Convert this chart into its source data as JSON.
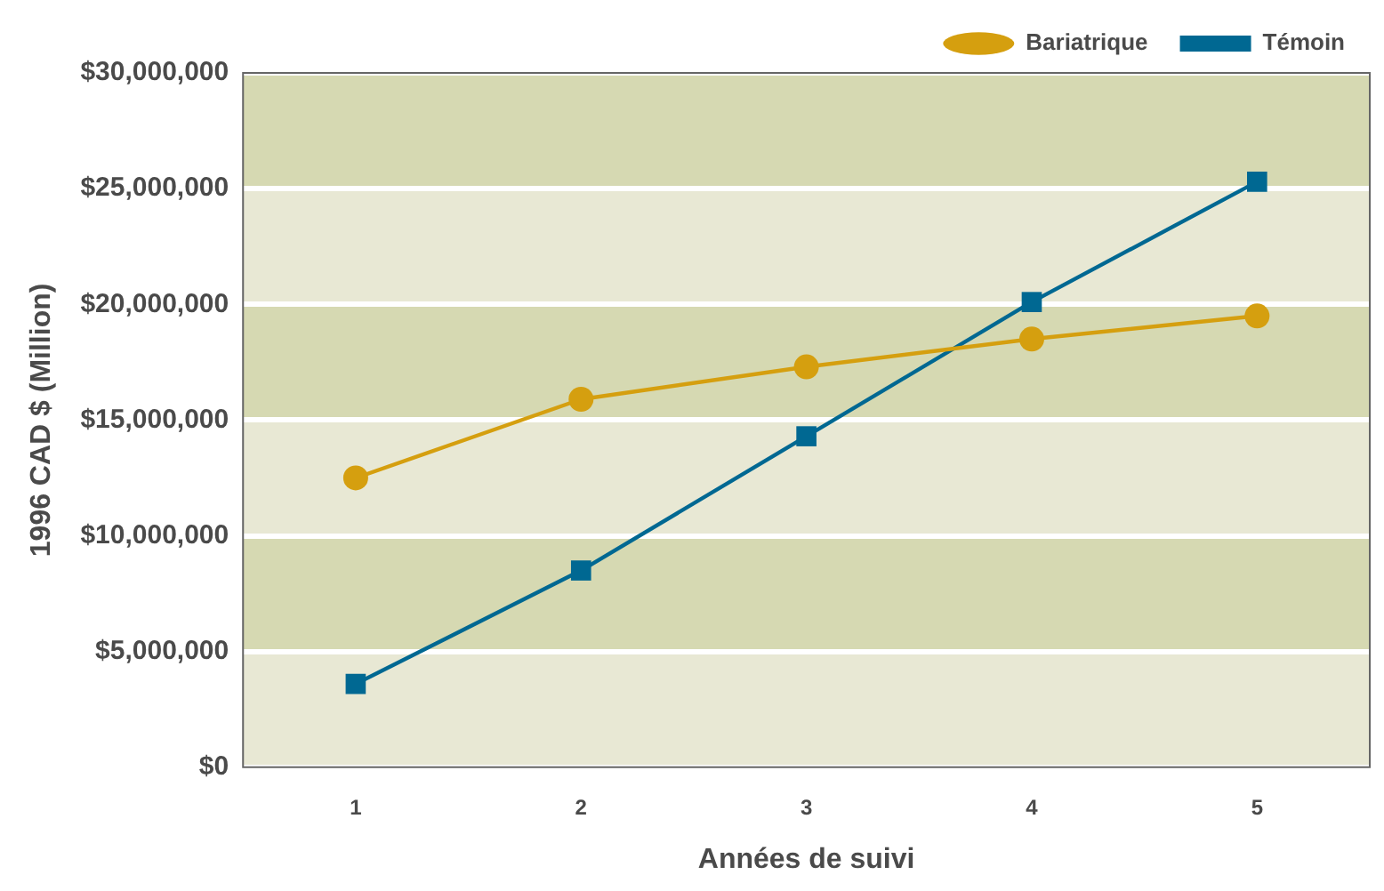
{
  "chart_data": {
    "type": "line",
    "xlabel": "Années de suivi",
    "ylabel": "1996 CAD $ (Million)",
    "categories": [
      "1",
      "2",
      "3",
      "4",
      "5"
    ],
    "series": [
      {
        "name": "Bariatrique",
        "color": "#d59f0f",
        "marker": "circle",
        "values": [
          12500000,
          15900000,
          17300000,
          18500000,
          19500000
        ]
      },
      {
        "name": "Témoin",
        "color": "#006892",
        "marker": "square",
        "values": [
          3600000,
          8500000,
          14300000,
          20100000,
          25300000
        ]
      }
    ],
    "ylim": [
      0,
      30000000
    ],
    "yticks": [
      {
        "value": 0,
        "label": "$0"
      },
      {
        "value": 5000000,
        "label": "$5,000,000"
      },
      {
        "value": 10000000,
        "label": "$10,000,000"
      },
      {
        "value": 15000000,
        "label": "$15,000,000"
      },
      {
        "value": 20000000,
        "label": "$20,000,000"
      },
      {
        "value": 25000000,
        "label": "$25,000,000"
      },
      {
        "value": 30000000,
        "label": "$30,000,000"
      }
    ],
    "bands": [
      {
        "axis": "y",
        "from": 5000000,
        "to": 10000000,
        "color": "#d6d9b2"
      },
      {
        "axis": "y",
        "from": 15000000,
        "to": 20000000,
        "color": "#d6d9b2"
      },
      {
        "axis": "y",
        "from": 25000000,
        "to": 30000000,
        "color": "#d6d9b2"
      }
    ],
    "grid": "y",
    "legend": "top right",
    "line_style": "solid"
  }
}
